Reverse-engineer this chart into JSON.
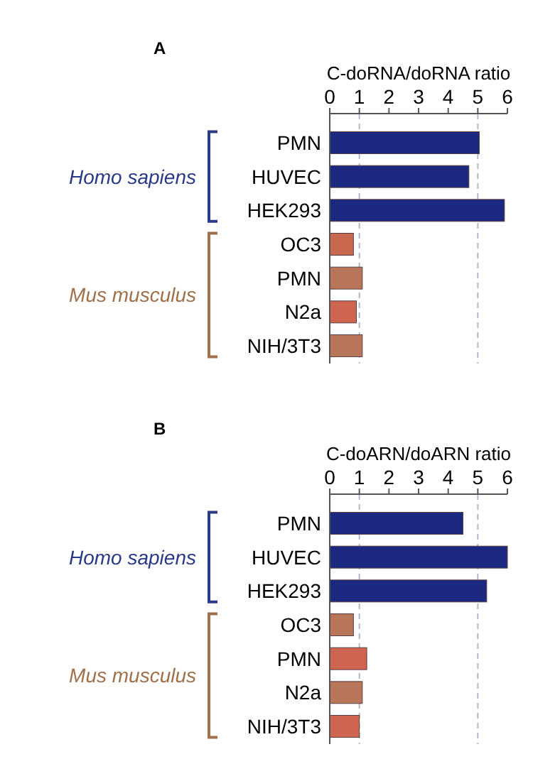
{
  "chart_data": [
    {
      "type": "bar",
      "orientation": "horizontal",
      "title": "A",
      "xlabel": "C-doRNA/doRNA ratio",
      "categories": [
        "PMN",
        "HUVEC",
        "HEK293",
        "OC3",
        "PMN",
        "N2a",
        "NIH/3T3"
      ],
      "values": [
        5.05,
        4.7,
        5.9,
        0.8,
        1.1,
        0.9,
        1.1
      ],
      "colors": [
        "#1b2a80",
        "#1b2a80",
        "#1b2a80",
        "#c8684e",
        "#b8755a",
        "#cf6550",
        "#b8755a"
      ],
      "xlim": [
        0,
        6
      ],
      "xticks": [
        0,
        1,
        2,
        3,
        4,
        5,
        6
      ],
      "ref_lines": [
        {
          "axis": "x",
          "value": 1,
          "color": "#b0b8d0",
          "line_style": "dashed"
        },
        {
          "axis": "x",
          "value": 5,
          "color": "#b0b8d0",
          "line_style": "dashed"
        }
      ],
      "annotations": [
        "Homo sapiens",
        "Mus musculus"
      ]
    },
    {
      "type": "bar",
      "orientation": "horizontal",
      "title": "B",
      "xlabel": "C-doARN/doARN ratio",
      "categories": [
        "PMN",
        "HUVEC",
        "HEK293",
        "OC3",
        "PMN",
        "N2a",
        "NIH/3T3"
      ],
      "values": [
        4.5,
        6.0,
        5.3,
        0.8,
        1.25,
        1.1,
        1.0
      ],
      "colors": [
        "#1b2a80",
        "#1b2a80",
        "#1b2a80",
        "#b8755a",
        "#cf6550",
        "#b8755a",
        "#cf6550"
      ],
      "xlim": [
        0,
        6
      ],
      "xticks": [
        0,
        1,
        2,
        3,
        4,
        5,
        6
      ],
      "ref_lines": [
        {
          "axis": "x",
          "value": 1,
          "color": "#b0b8d0",
          "line_style": "dashed"
        },
        {
          "axis": "x",
          "value": 5,
          "color": "#b0b8d0",
          "line_style": "dashed"
        }
      ],
      "annotations": [
        "Homo sapiens",
        "Mus musculus"
      ]
    }
  ]
}
